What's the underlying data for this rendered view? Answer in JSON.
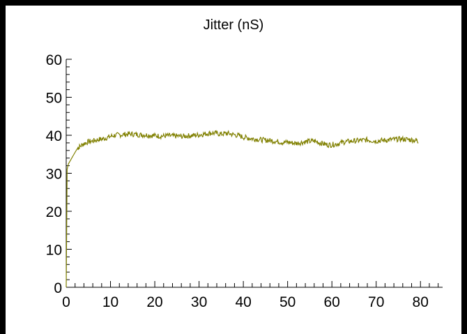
{
  "chart_data": {
    "type": "line",
    "title": "Jitter (nS)",
    "xlabel": "",
    "ylabel": "",
    "xlim": [
      0,
      85
    ],
    "ylim": [
      0,
      60
    ],
    "x_ticks": [
      0,
      10,
      20,
      30,
      40,
      50,
      60,
      70,
      80
    ],
    "y_ticks": [
      0,
      10,
      20,
      30,
      40,
      50,
      60
    ],
    "grid": false,
    "legend": "none",
    "colors": {
      "line": "#808000",
      "axis": "#000000",
      "frame": "#000000"
    },
    "series": [
      {
        "x": [
          0,
          0.2,
          0.5,
          1,
          1.5,
          2,
          2.5,
          3,
          4,
          5,
          6,
          7,
          8,
          9,
          10,
          11,
          12,
          13,
          14,
          15,
          16,
          17,
          18,
          19,
          20,
          21,
          22,
          23,
          24,
          25,
          26,
          27,
          28,
          29,
          30,
          31,
          32,
          33,
          34,
          35,
          36,
          37,
          38,
          39,
          40,
          41,
          42,
          43,
          44,
          45,
          46,
          47,
          48,
          49,
          50,
          51,
          52,
          53,
          54,
          55,
          56,
          57,
          58,
          59,
          60,
          61,
          62,
          63,
          64,
          65,
          66,
          67,
          68,
          69,
          70,
          71,
          72,
          73,
          74,
          75,
          76,
          77,
          78,
          79,
          79.5
        ],
        "values": [
          0,
          31,
          32.5,
          33.5,
          34.5,
          35.5,
          36.5,
          37,
          37.8,
          38.3,
          38.5,
          38.8,
          39,
          39.3,
          39.7,
          40,
          40.1,
          40.2,
          40.3,
          40.3,
          40.2,
          40.1,
          40.1,
          40,
          39.9,
          39.8,
          39.8,
          39.9,
          39.8,
          39.8,
          39.7,
          39.8,
          39.9,
          40,
          40.1,
          40.3,
          40.5,
          40.6,
          40.5,
          40.3,
          40.5,
          40.4,
          40.1,
          39.9,
          39.5,
          39.3,
          39.1,
          39,
          38.8,
          38.7,
          38.6,
          38.5,
          38.3,
          38.1,
          38.2,
          38,
          37.9,
          38.1,
          38.3,
          38.4,
          38.5,
          38.1,
          37.8,
          37.5,
          37.5,
          37.7,
          38,
          38.3,
          38.4,
          38.5,
          38.6,
          38.7,
          38.8,
          38.6,
          38.5,
          38.6,
          38.7,
          38.8,
          38.9,
          39,
          39,
          38.9,
          38.8,
          38.7,
          38.5
        ]
      }
    ]
  }
}
